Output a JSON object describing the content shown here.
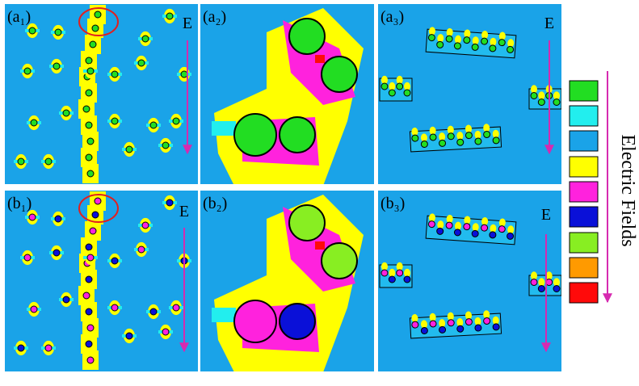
{
  "panels": [
    {
      "label": "(a₁)"
    },
    {
      "label": "(a₂)"
    },
    {
      "label": "(a₃)"
    },
    {
      "label": "(b₁)"
    },
    {
      "label": "(b₂)"
    },
    {
      "label": "(b₃)"
    }
  ],
  "field_labels": [
    "E",
    "E",
    "E",
    "E"
  ],
  "legend": {
    "title": "Electric Fields"
  }
}
